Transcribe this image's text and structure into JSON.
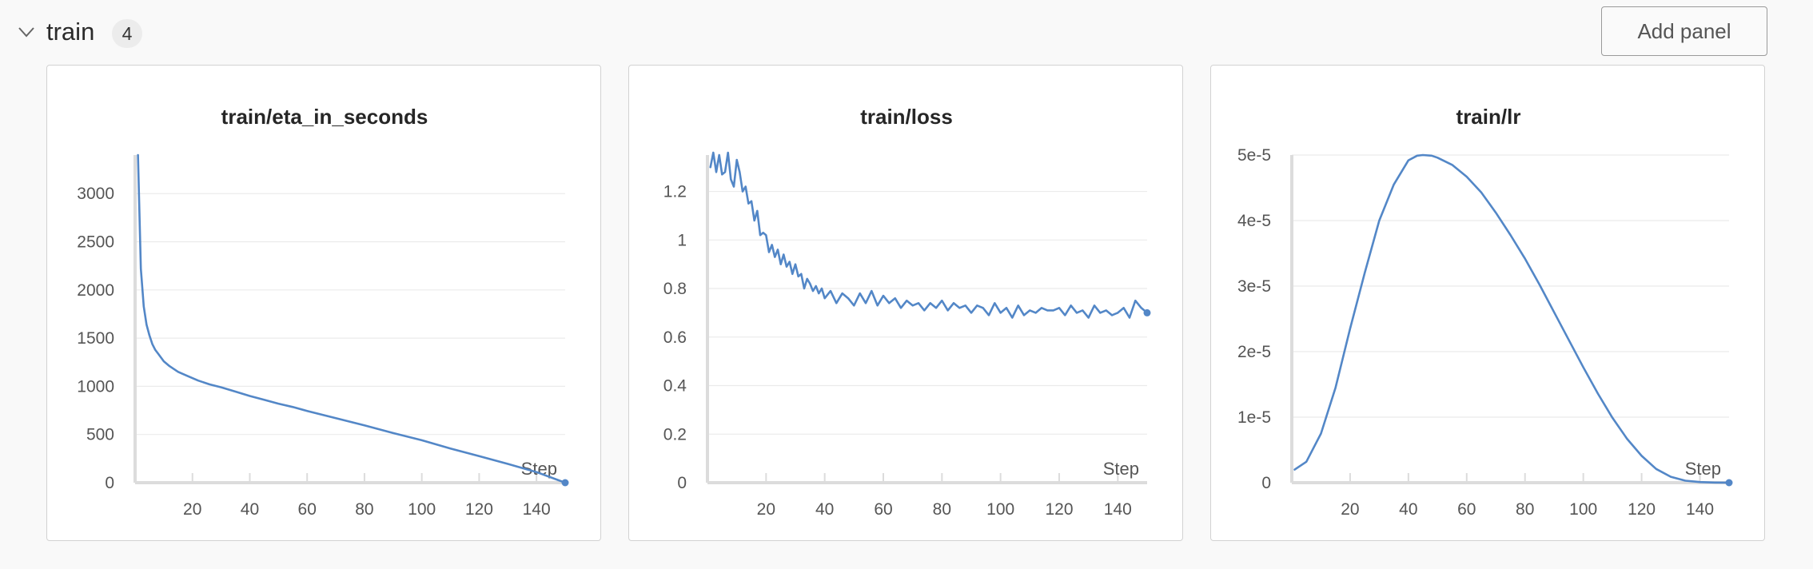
{
  "section": {
    "title": "train",
    "count": "4",
    "add_panel_label": "Add panel"
  },
  "icons": {
    "collapse": "chevron-down-icon"
  },
  "colors": {
    "line": "#5387c7",
    "grid": "#ebebeb",
    "axis": "#dcdcdc"
  },
  "chart_data": [
    {
      "type": "line",
      "title": "train/eta_in_seconds",
      "xlabel": "Step",
      "ylabel": "",
      "xlim": [
        0,
        150
      ],
      "ylim": [
        0,
        3400
      ],
      "xticks": [
        20,
        40,
        60,
        80,
        100,
        120,
        140
      ],
      "xtick_labels": [
        "20",
        "40",
        "60",
        "80",
        "100",
        "120",
        "140"
      ],
      "yticks": [
        0,
        500,
        1000,
        1500,
        2000,
        2500,
        3000
      ],
      "ytick_labels": [
        "0",
        "500",
        "1000",
        "1500",
        "2000",
        "2500",
        "3000"
      ],
      "grid": true,
      "series": [
        {
          "x": [
            1,
            2,
            3,
            4,
            5,
            6,
            7,
            8,
            10,
            12,
            15,
            18,
            22,
            26,
            30,
            35,
            40,
            45,
            50,
            55,
            60,
            70,
            80,
            90,
            100,
            110,
            120,
            130,
            140,
            150
          ],
          "y": [
            3400,
            2220,
            1830,
            1640,
            1530,
            1440,
            1380,
            1340,
            1260,
            1210,
            1150,
            1110,
            1060,
            1020,
            990,
            945,
            900,
            860,
            820,
            785,
            745,
            670,
            595,
            515,
            440,
            355,
            275,
            195,
            110,
            0
          ]
        }
      ]
    },
    {
      "type": "line",
      "title": "train/loss",
      "xlabel": "Step",
      "ylabel": "",
      "xlim": [
        0,
        150
      ],
      "ylim": [
        0,
        1.35
      ],
      "xticks": [
        20,
        40,
        60,
        80,
        100,
        120,
        140
      ],
      "xtick_labels": [
        "20",
        "40",
        "60",
        "80",
        "100",
        "120",
        "140"
      ],
      "yticks": [
        0,
        0.2,
        0.4,
        0.6,
        0.8,
        1,
        1.2
      ],
      "ytick_labels": [
        "0",
        "0.2",
        "0.4",
        "0.6",
        "0.8",
        "1",
        "1.2"
      ],
      "grid": true,
      "series": [
        {
          "x": [
            1,
            2,
            3,
            4,
            5,
            6,
            7,
            8,
            9,
            10,
            11,
            12,
            13,
            14,
            15,
            16,
            17,
            18,
            19,
            20,
            21,
            22,
            23,
            24,
            25,
            26,
            27,
            28,
            29,
            30,
            31,
            32,
            33,
            34,
            35,
            36,
            37,
            38,
            39,
            40,
            42,
            44,
            46,
            48,
            50,
            52,
            54,
            56,
            58,
            60,
            62,
            64,
            66,
            68,
            70,
            72,
            74,
            76,
            78,
            80,
            82,
            84,
            86,
            88,
            90,
            92,
            94,
            96,
            98,
            100,
            102,
            104,
            106,
            108,
            110,
            112,
            114,
            116,
            118,
            120,
            122,
            124,
            126,
            128,
            130,
            132,
            134,
            136,
            138,
            140,
            142,
            144,
            146,
            148,
            150
          ],
          "y": [
            1.3,
            1.36,
            1.28,
            1.35,
            1.27,
            1.28,
            1.36,
            1.25,
            1.22,
            1.33,
            1.28,
            1.2,
            1.22,
            1.15,
            1.16,
            1.08,
            1.12,
            1.02,
            1.03,
            1.02,
            0.95,
            0.98,
            0.93,
            0.96,
            0.9,
            0.94,
            0.89,
            0.91,
            0.86,
            0.9,
            0.85,
            0.86,
            0.8,
            0.84,
            0.82,
            0.79,
            0.81,
            0.78,
            0.8,
            0.76,
            0.79,
            0.74,
            0.78,
            0.76,
            0.73,
            0.78,
            0.74,
            0.79,
            0.73,
            0.77,
            0.74,
            0.76,
            0.72,
            0.75,
            0.73,
            0.74,
            0.71,
            0.74,
            0.72,
            0.75,
            0.71,
            0.74,
            0.72,
            0.73,
            0.7,
            0.73,
            0.72,
            0.69,
            0.74,
            0.7,
            0.72,
            0.68,
            0.73,
            0.69,
            0.71,
            0.7,
            0.72,
            0.71,
            0.71,
            0.72,
            0.69,
            0.73,
            0.7,
            0.71,
            0.68,
            0.73,
            0.7,
            0.71,
            0.69,
            0.7,
            0.72,
            0.68,
            0.75,
            0.72,
            0.7
          ]
        }
      ]
    },
    {
      "type": "line",
      "title": "train/lr",
      "xlabel": "Step",
      "ylabel": "",
      "xlim": [
        0,
        150
      ],
      "ylim": [
        0,
        5e-05
      ],
      "xticks": [
        20,
        40,
        60,
        80,
        100,
        120,
        140
      ],
      "xtick_labels": [
        "20",
        "40",
        "60",
        "80",
        "100",
        "120",
        "140"
      ],
      "yticks": [
        0,
        1e-05,
        2e-05,
        3e-05,
        4e-05,
        5e-05
      ],
      "ytick_labels": [
        "0",
        "1e-5",
        "2e-5",
        "3e-5",
        "4e-5",
        "5e-5"
      ],
      "grid": true,
      "series": [
        {
          "x": [
            1,
            5,
            10,
            15,
            20,
            25,
            30,
            35,
            40,
            43,
            45,
            48,
            50,
            55,
            60,
            65,
            70,
            75,
            80,
            85,
            90,
            95,
            100,
            105,
            110,
            115,
            120,
            125,
            130,
            135,
            140,
            145,
            150
          ],
          "y": [
            2e-06,
            3.2e-06,
            7.5e-06,
            1.45e-05,
            2.35e-05,
            3.2e-05,
            4e-05,
            4.55e-05,
            4.92e-05,
            4.99e-05,
            5e-05,
            4.99e-05,
            4.96e-05,
            4.85e-05,
            4.67e-05,
            4.43e-05,
            4.12e-05,
            3.78e-05,
            3.42e-05,
            3.02e-05,
            2.6e-05,
            2.18e-05,
            1.76e-05,
            1.36e-05,
            9.9e-06,
            6.7e-06,
            4.1e-06,
            2.1e-06,
            9e-07,
            3e-07,
            1e-07,
            2e-08,
            0
          ]
        }
      ]
    }
  ]
}
